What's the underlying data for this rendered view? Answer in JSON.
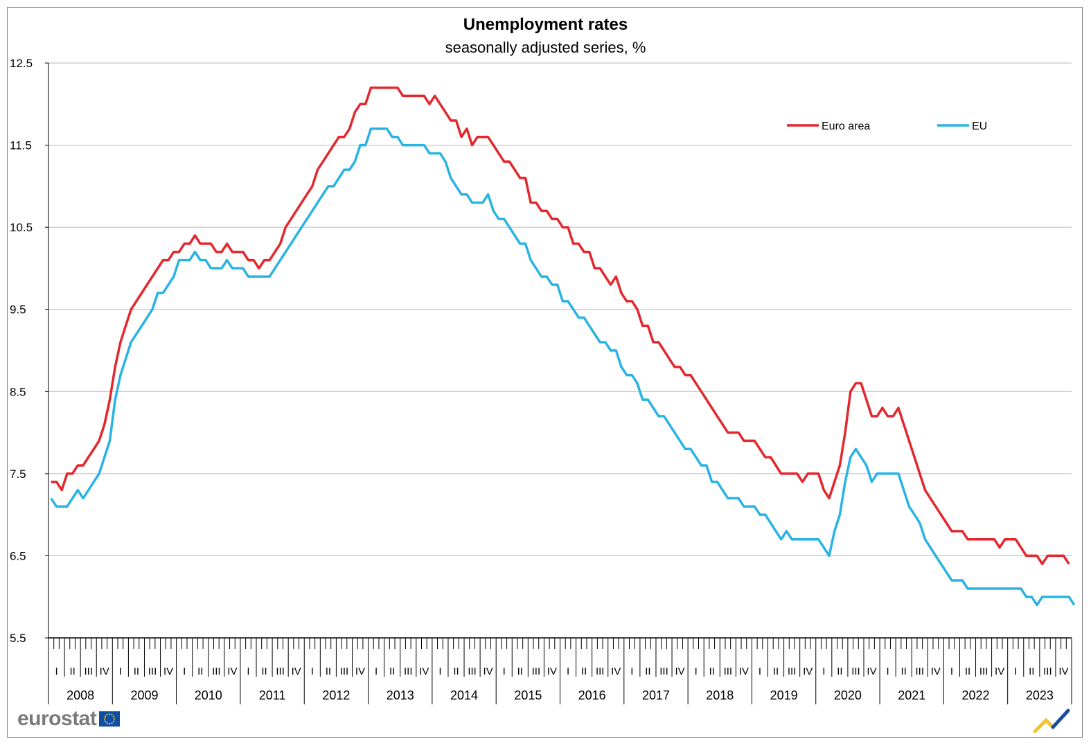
{
  "chart_data": {
    "type": "line",
    "title": "Unemployment rates",
    "subtitle": "seasonally adjusted series, %",
    "xlabel": "",
    "ylabel": "",
    "ylim": [
      5.5,
      12.5
    ],
    "yticks": [
      "12.5",
      "11.5",
      "10.5",
      "9.5",
      "8.5",
      "7.5",
      "6.5",
      "5.5"
    ],
    "ytick_values": [
      12.5,
      11.5,
      10.5,
      9.5,
      8.5,
      7.5,
      6.5,
      5.5
    ],
    "grid": "horizontal",
    "legend_position": "top-right",
    "years": [
      "2008",
      "2009",
      "2010",
      "2011",
      "2012",
      "2013",
      "2014",
      "2015",
      "2016",
      "2017",
      "2018",
      "2019",
      "2020",
      "2021",
      "2022",
      "2023"
    ],
    "quarters": [
      "I",
      "II",
      "III",
      "IV"
    ],
    "x_start": "2008-01",
    "series": [
      {
        "name": "Euro area",
        "color": "#e3272d",
        "values": [
          7.4,
          7.4,
          7.3,
          7.5,
          7.5,
          7.6,
          7.6,
          7.7,
          7.8,
          7.9,
          8.1,
          8.4,
          8.8,
          9.1,
          9.3,
          9.5,
          9.6,
          9.7,
          9.8,
          9.9,
          10.0,
          10.1,
          10.1,
          10.2,
          10.2,
          10.3,
          10.3,
          10.4,
          10.3,
          10.3,
          10.3,
          10.2,
          10.2,
          10.3,
          10.2,
          10.2,
          10.2,
          10.1,
          10.1,
          10.0,
          10.1,
          10.1,
          10.2,
          10.3,
          10.5,
          10.6,
          10.7,
          10.8,
          10.9,
          11.0,
          11.2,
          11.3,
          11.4,
          11.5,
          11.6,
          11.6,
          11.7,
          11.9,
          12.0,
          12.0,
          12.2,
          12.2,
          12.2,
          12.2,
          12.2,
          12.2,
          12.1,
          12.1,
          12.1,
          12.1,
          12.1,
          12.0,
          12.1,
          12.0,
          11.9,
          11.8,
          11.8,
          11.6,
          11.7,
          11.5,
          11.6,
          11.6,
          11.6,
          11.5,
          11.4,
          11.3,
          11.3,
          11.2,
          11.1,
          11.1,
          10.8,
          10.8,
          10.7,
          10.7,
          10.6,
          10.6,
          10.5,
          10.5,
          10.3,
          10.3,
          10.2,
          10.2,
          10.0,
          10.0,
          9.9,
          9.8,
          9.9,
          9.7,
          9.6,
          9.6,
          9.5,
          9.3,
          9.3,
          9.1,
          9.1,
          9.0,
          8.9,
          8.8,
          8.8,
          8.7,
          8.7,
          8.6,
          8.5,
          8.4,
          8.3,
          8.2,
          8.1,
          8.0,
          8.0,
          8.0,
          7.9,
          7.9,
          7.9,
          7.8,
          7.7,
          7.7,
          7.6,
          7.5,
          7.5,
          7.5,
          7.5,
          7.4,
          7.5,
          7.5,
          7.5,
          7.3,
          7.2,
          7.4,
          7.6,
          8.0,
          8.5,
          8.6,
          8.6,
          8.4,
          8.2,
          8.2,
          8.3,
          8.2,
          8.2,
          8.3,
          8.1,
          7.9,
          7.7,
          7.5,
          7.3,
          7.2,
          7.1,
          7.0,
          6.9,
          6.8,
          6.8,
          6.8,
          6.7,
          6.7,
          6.7,
          6.7,
          6.7,
          6.7,
          6.6,
          6.7,
          6.7,
          6.7,
          6.6,
          6.5,
          6.5,
          6.5,
          6.4,
          6.5,
          6.5,
          6.5,
          6.5,
          6.4
        ]
      },
      {
        "name": "EU",
        "color": "#29b3e4",
        "values": [
          7.2,
          7.1,
          7.1,
          7.1,
          7.2,
          7.3,
          7.2,
          7.3,
          7.4,
          7.5,
          7.7,
          7.9,
          8.4,
          8.7,
          8.9,
          9.1,
          9.2,
          9.3,
          9.4,
          9.5,
          9.7,
          9.7,
          9.8,
          9.9,
          10.1,
          10.1,
          10.1,
          10.2,
          10.1,
          10.1,
          10.0,
          10.0,
          10.0,
          10.1,
          10.0,
          10.0,
          10.0,
          9.9,
          9.9,
          9.9,
          9.9,
          9.9,
          10.0,
          10.1,
          10.2,
          10.3,
          10.4,
          10.5,
          10.6,
          10.7,
          10.8,
          10.9,
          11.0,
          11.0,
          11.1,
          11.2,
          11.2,
          11.3,
          11.5,
          11.5,
          11.7,
          11.7,
          11.7,
          11.7,
          11.6,
          11.6,
          11.5,
          11.5,
          11.5,
          11.5,
          11.5,
          11.4,
          11.4,
          11.4,
          11.3,
          11.1,
          11.0,
          10.9,
          10.9,
          10.8,
          10.8,
          10.8,
          10.9,
          10.7,
          10.6,
          10.6,
          10.5,
          10.4,
          10.3,
          10.3,
          10.1,
          10.0,
          9.9,
          9.9,
          9.8,
          9.8,
          9.6,
          9.6,
          9.5,
          9.4,
          9.4,
          9.3,
          9.2,
          9.1,
          9.1,
          9.0,
          9.0,
          8.8,
          8.7,
          8.7,
          8.6,
          8.4,
          8.4,
          8.3,
          8.2,
          8.2,
          8.1,
          8.0,
          7.9,
          7.8,
          7.8,
          7.7,
          7.6,
          7.6,
          7.4,
          7.4,
          7.3,
          7.2,
          7.2,
          7.2,
          7.1,
          7.1,
          7.1,
          7.0,
          7.0,
          6.9,
          6.8,
          6.7,
          6.8,
          6.7,
          6.7,
          6.7,
          6.7,
          6.7,
          6.7,
          6.6,
          6.5,
          6.8,
          7.0,
          7.4,
          7.7,
          7.8,
          7.7,
          7.6,
          7.4,
          7.5,
          7.5,
          7.5,
          7.5,
          7.5,
          7.3,
          7.1,
          7.0,
          6.9,
          6.7,
          6.6,
          6.5,
          6.4,
          6.3,
          6.2,
          6.2,
          6.2,
          6.1,
          6.1,
          6.1,
          6.1,
          6.1,
          6.1,
          6.1,
          6.1,
          6.1,
          6.1,
          6.1,
          6.0,
          6.0,
          5.9,
          6.0,
          6.0,
          6.0,
          6.0,
          6.0,
          6.0,
          5.9
        ]
      }
    ]
  },
  "branding": {
    "logo_text": "eurostat"
  }
}
